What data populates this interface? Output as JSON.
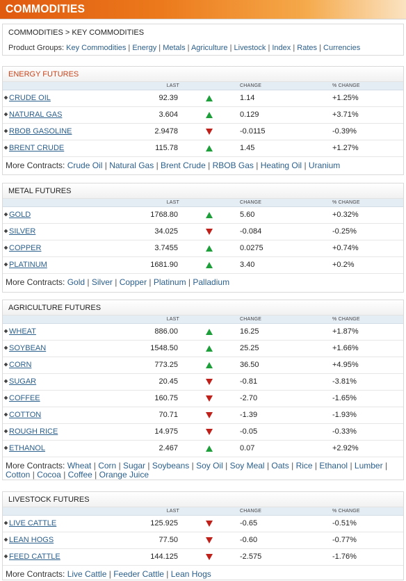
{
  "header": {
    "title": "COMMODITIES"
  },
  "breadcrumb": {
    "text": "COMMODITIES > KEY COMMODITIES"
  },
  "product_groups": {
    "label": "Product Groups:",
    "items": [
      "Key Commodities",
      "Energy",
      "Metals",
      "Agriculture",
      "Livestock",
      "Index",
      "Rates",
      "Currencies"
    ]
  },
  "columns": {
    "last": "LAST",
    "change": "CHANGE",
    "pct": "% CHANGE"
  },
  "more_label": "More Contracts:",
  "sections": [
    {
      "id": "energy",
      "title": "ENERGY FUTURES",
      "accent": "#c8431a",
      "rows": [
        {
          "name": "CRUDE OIL",
          "last": "92.39",
          "dir": "up",
          "change": "1.14",
          "pct": "+1.25%"
        },
        {
          "name": "NATURAL GAS",
          "last": "3.604",
          "dir": "up",
          "change": "0.129",
          "pct": "+3.71%"
        },
        {
          "name": "RBOB GASOLINE",
          "last": "2.9478",
          "dir": "down",
          "change": "-0.0115",
          "pct": "-0.39%"
        },
        {
          "name": "BRENT CRUDE",
          "last": "115.78",
          "dir": "up",
          "change": "1.45",
          "pct": "+1.27%"
        }
      ],
      "more": [
        "Crude Oil",
        "Natural Gas",
        "Brent Crude",
        "RBOB Gas",
        "Heating Oil",
        "Uranium"
      ]
    },
    {
      "id": "metal",
      "title": "METAL FUTURES",
      "rows": [
        {
          "name": "GOLD",
          "last": "1768.80",
          "dir": "up",
          "change": "5.60",
          "pct": "+0.32%"
        },
        {
          "name": "SILVER",
          "last": "34.025",
          "dir": "down",
          "change": "-0.084",
          "pct": "-0.25%"
        },
        {
          "name": "COPPER",
          "last": "3.7455",
          "dir": "up",
          "change": "0.0275",
          "pct": "+0.74%"
        },
        {
          "name": "PLATINUM",
          "last": "1681.90",
          "dir": "up",
          "change": "3.40",
          "pct": "+0.2%"
        }
      ],
      "more": [
        "Gold",
        "Silver",
        "Copper",
        "Platinum",
        "Palladium"
      ]
    },
    {
      "id": "agri",
      "title": "AGRICULTURE FUTURES",
      "rows": [
        {
          "name": "WHEAT",
          "last": "886.00",
          "dir": "up",
          "change": "16.25",
          "pct": "+1.87%"
        },
        {
          "name": "SOYBEAN",
          "last": "1548.50",
          "dir": "up",
          "change": "25.25",
          "pct": "+1.66%"
        },
        {
          "name": "CORN",
          "last": "773.25",
          "dir": "up",
          "change": "36.50",
          "pct": "+4.95%"
        },
        {
          "name": "SUGAR",
          "last": "20.45",
          "dir": "down",
          "change": "-0.81",
          "pct": "-3.81%"
        },
        {
          "name": "COFFEE",
          "last": "160.75",
          "dir": "down",
          "change": "-2.70",
          "pct": "-1.65%"
        },
        {
          "name": "COTTON",
          "last": "70.71",
          "dir": "down",
          "change": "-1.39",
          "pct": "-1.93%"
        },
        {
          "name": "ROUGH RICE",
          "last": "14.975",
          "dir": "down",
          "change": "-0.05",
          "pct": "-0.33%"
        },
        {
          "name": "ETHANOL",
          "last": "2.467",
          "dir": "up",
          "change": "0.07",
          "pct": "+2.92%"
        }
      ],
      "more": [
        "Wheat",
        "Corn",
        "Sugar",
        "Soybeans",
        "Soy Oil",
        "Soy Meal",
        "Oats",
        "Rice",
        "Ethanol",
        "Lumber",
        "Cotton",
        "Cocoa",
        "Coffee",
        "Orange Juice"
      ]
    },
    {
      "id": "live",
      "title": "LIVESTOCK FUTURES",
      "rows": [
        {
          "name": "LIVE CATTLE",
          "last": "125.925",
          "dir": "down",
          "change": "-0.65",
          "pct": "-0.51%"
        },
        {
          "name": "LEAN HOGS",
          "last": "77.50",
          "dir": "down",
          "change": "-0.60",
          "pct": "-0.77%"
        },
        {
          "name": "FEED CATTLE",
          "last": "144.125",
          "dir": "down",
          "change": "-2.575",
          "pct": "-1.76%"
        }
      ],
      "more": [
        "Live Cattle",
        "Feeder Cattle",
        "Lean Hogs"
      ]
    }
  ],
  "icons": {
    "up": "triangle-up-icon",
    "down": "triangle-down-icon",
    "bullet": "bullet-icon"
  },
  "colors": {
    "up": "#1e9e3a",
    "down": "#c0201a",
    "link": "#2b5f8c",
    "header": "#e05a10"
  }
}
